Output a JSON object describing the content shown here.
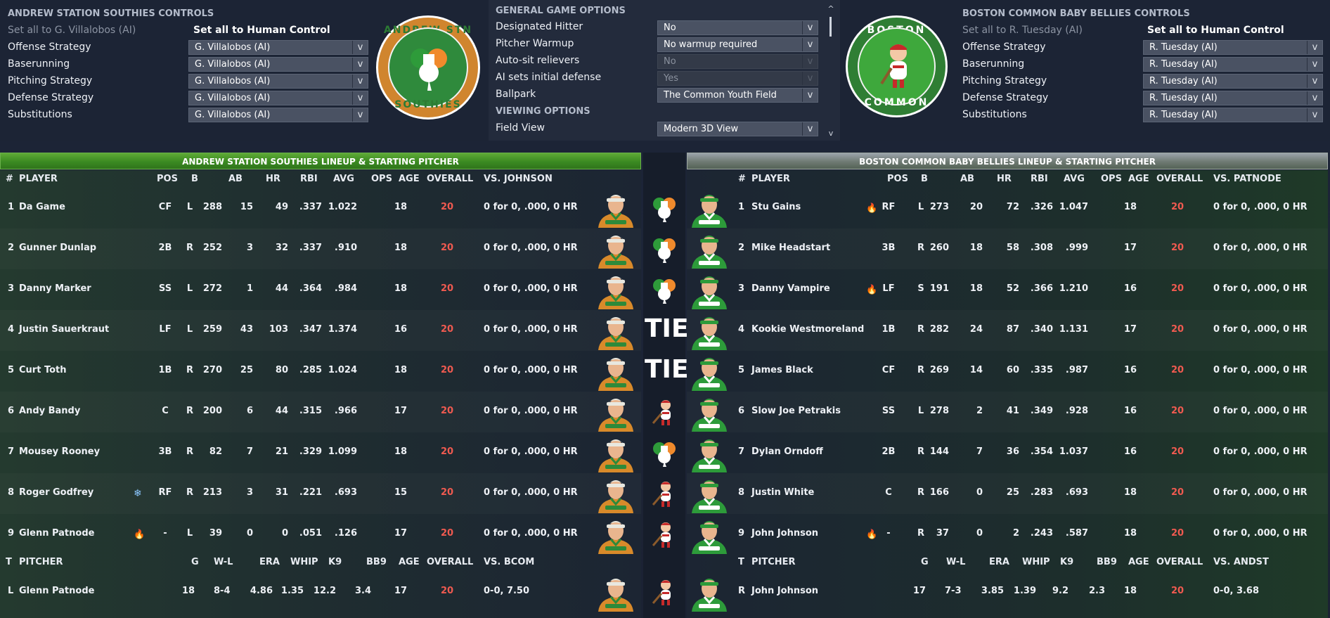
{
  "away_controls": {
    "title": "ANDREW STATION SOUTHIES CONTROLS",
    "set_all_label": "Set all to G. Villalobos (AI)",
    "set_all_human": "Set all to Human Control",
    "rows": [
      {
        "label": "Offense Strategy",
        "value": "G. Villalobos (AI)"
      },
      {
        "label": "Baserunning",
        "value": "G. Villalobos (AI)"
      },
      {
        "label": "Pitching Strategy",
        "value": "G. Villalobos (AI)"
      },
      {
        "label": "Defense Strategy",
        "value": "G. Villalobos (AI)"
      },
      {
        "label": "Substitutions",
        "value": "G. Villalobos (AI)"
      }
    ],
    "logo_text_top": "ANDREW STN",
    "logo_text_bottom": "SOUTHIES"
  },
  "home_controls": {
    "title": "BOSTON COMMON BABY BELLIES CONTROLS",
    "set_all_label": "Set all to R. Tuesday (AI)",
    "set_all_human": "Set all to Human Control",
    "rows": [
      {
        "label": "Offense Strategy",
        "value": "R. Tuesday (AI)"
      },
      {
        "label": "Baserunning",
        "value": "R. Tuesday (AI)"
      },
      {
        "label": "Pitching Strategy",
        "value": "R. Tuesday (AI)"
      },
      {
        "label": "Defense Strategy",
        "value": "R. Tuesday (AI)"
      },
      {
        "label": "Substitutions",
        "value": "R. Tuesday (AI)"
      }
    ],
    "logo_text_top": "BOSTON",
    "logo_text_bottom": "COMMON"
  },
  "general": {
    "title": "GENERAL GAME OPTIONS",
    "rows": [
      {
        "label": "Designated Hitter",
        "value": "No",
        "disabled": false
      },
      {
        "label": "Pitcher Warmup",
        "value": "No warmup required",
        "disabled": false
      },
      {
        "label": "Auto-sit relievers",
        "value": "No",
        "disabled": true
      },
      {
        "label": "AI sets initial defense",
        "value": "Yes",
        "disabled": true
      },
      {
        "label": "Ballpark",
        "value": "The Common Youth Field",
        "disabled": false
      }
    ],
    "viewing_title": "VIEWING OPTIONS",
    "view_label": "Field View",
    "view_value": "Modern 3D View",
    "scroll_up": "^",
    "scroll_down": "v"
  },
  "away_lineup": {
    "header": "ANDREW STATION SOUTHIES LINEUP & STARTING PITCHER",
    "cols": {
      "num": "#",
      "player": "PLAYER",
      "pos": "POS",
      "b": "B",
      "ab": "AB",
      "hr": "HR",
      "rbi": "RBI",
      "avg": "AVG",
      "ops": "OPS",
      "age": "AGE",
      "overall": "OVERALL",
      "vs": "VS. JOHNSON"
    },
    "rows": [
      {
        "num": "1",
        "name": "Da Game",
        "pos": "CF",
        "b": "L",
        "ab": "288",
        "hr": "15",
        "rbi": "49",
        "avg": ".337",
        "ops": "1.022",
        "age": "18",
        "overall": "20",
        "vs": "0 for 0, .000, 0 HR",
        "icon": ""
      },
      {
        "num": "2",
        "name": "Gunner Dunlap",
        "pos": "2B",
        "b": "R",
        "ab": "252",
        "hr": "3",
        "rbi": "32",
        "avg": ".337",
        "ops": ".910",
        "age": "18",
        "overall": "20",
        "vs": "0 for 0, .000, 0 HR",
        "icon": ""
      },
      {
        "num": "3",
        "name": "Danny Marker",
        "pos": "SS",
        "b": "L",
        "ab": "272",
        "hr": "1",
        "rbi": "44",
        "avg": ".364",
        "ops": ".984",
        "age": "18",
        "overall": "20",
        "vs": "0 for 0, .000, 0 HR",
        "icon": ""
      },
      {
        "num": "4",
        "name": "Justin Sauerkraut",
        "pos": "LF",
        "b": "L",
        "ab": "259",
        "hr": "43",
        "rbi": "103",
        "avg": ".347",
        "ops": "1.374",
        "age": "16",
        "overall": "20",
        "vs": "0 for 0, .000, 0 HR",
        "icon": ""
      },
      {
        "num": "5",
        "name": "Curt Toth",
        "pos": "1B",
        "b": "R",
        "ab": "270",
        "hr": "25",
        "rbi": "80",
        "avg": ".285",
        "ops": "1.024",
        "age": "18",
        "overall": "20",
        "vs": "0 for 0, .000, 0 HR",
        "icon": ""
      },
      {
        "num": "6",
        "name": "Andy Bandy",
        "pos": "C",
        "b": "R",
        "ab": "200",
        "hr": "6",
        "rbi": "44",
        "avg": ".315",
        "ops": ".966",
        "age": "17",
        "overall": "20",
        "vs": "0 for 0, .000, 0 HR",
        "icon": ""
      },
      {
        "num": "7",
        "name": "Mousey Rooney",
        "pos": "3B",
        "b": "R",
        "ab": "82",
        "hr": "7",
        "rbi": "21",
        "avg": ".329",
        "ops": "1.099",
        "age": "18",
        "overall": "20",
        "vs": "0 for 0, .000, 0 HR",
        "icon": ""
      },
      {
        "num": "8",
        "name": "Roger Godfrey",
        "pos": "RF",
        "b": "R",
        "ab": "213",
        "hr": "3",
        "rbi": "31",
        "avg": ".221",
        "ops": ".693",
        "age": "15",
        "overall": "20",
        "vs": "0 for 0, .000, 0 HR",
        "icon": "cold"
      },
      {
        "num": "9",
        "name": "Glenn Patnode",
        "pos": "-",
        "b": "L",
        "ab": "39",
        "hr": "0",
        "rbi": "0",
        "avg": ".051",
        "ops": ".126",
        "age": "17",
        "overall": "20",
        "vs": "0 for 0, .000, 0 HR",
        "icon": "hot"
      }
    ],
    "pcols": {
      "t": "T",
      "pitcher": "PITCHER",
      "g": "G",
      "wl": "W-L",
      "era": "ERA",
      "whip": "WHIP",
      "k9": "K9",
      "bb9": "BB9",
      "age": "AGE",
      "overall": "OVERALL",
      "vs": "VS. BCOM"
    },
    "pitcher": {
      "t": "L",
      "name": "Glenn Patnode",
      "g": "18",
      "wl": "8-4",
      "era": "4.86",
      "whip": "1.35",
      "k9": "12.2",
      "bb9": "3.4",
      "age": "17",
      "overall": "20",
      "vs": "0-0, 7.50"
    }
  },
  "home_lineup": {
    "header": "BOSTON COMMON BABY BELLIES LINEUP & STARTING PITCHER",
    "cols": {
      "num": "#",
      "player": "PLAYER",
      "pos": "POS",
      "b": "B",
      "ab": "AB",
      "hr": "HR",
      "rbi": "RBI",
      "avg": "AVG",
      "ops": "OPS",
      "age": "AGE",
      "overall": "OVERALL",
      "vs": "VS. PATNODE"
    },
    "rows": [
      {
        "num": "1",
        "name": "Stu Gains",
        "pos": "RF",
        "b": "L",
        "ab": "273",
        "hr": "20",
        "rbi": "72",
        "avg": ".326",
        "ops": "1.047",
        "age": "18",
        "overall": "20",
        "vs": "0 for 0, .000, 0 HR",
        "icon": "hot"
      },
      {
        "num": "2",
        "name": "Mike Headstart",
        "pos": "3B",
        "b": "R",
        "ab": "260",
        "hr": "18",
        "rbi": "58",
        "avg": ".308",
        "ops": ".999",
        "age": "17",
        "overall": "20",
        "vs": "0 for 0, .000, 0 HR",
        "icon": ""
      },
      {
        "num": "3",
        "name": "Danny Vampire",
        "pos": "LF",
        "b": "S",
        "ab": "191",
        "hr": "18",
        "rbi": "52",
        "avg": ".366",
        "ops": "1.210",
        "age": "16",
        "overall": "20",
        "vs": "0 for 0, .000, 0 HR",
        "icon": "hot"
      },
      {
        "num": "4",
        "name": "Kookie Westmoreland",
        "pos": "1B",
        "b": "R",
        "ab": "282",
        "hr": "24",
        "rbi": "87",
        "avg": ".340",
        "ops": "1.131",
        "age": "17",
        "overall": "20",
        "vs": "0 for 0, .000, 0 HR",
        "icon": ""
      },
      {
        "num": "5",
        "name": "James Black",
        "pos": "CF",
        "b": "R",
        "ab": "269",
        "hr": "14",
        "rbi": "60",
        "avg": ".335",
        "ops": ".987",
        "age": "16",
        "overall": "20",
        "vs": "0 for 0, .000, 0 HR",
        "icon": ""
      },
      {
        "num": "6",
        "name": "Slow Joe Petrakis",
        "pos": "SS",
        "b": "L",
        "ab": "278",
        "hr": "2",
        "rbi": "41",
        "avg": ".349",
        "ops": ".928",
        "age": "16",
        "overall": "20",
        "vs": "0 for 0, .000, 0 HR",
        "icon": ""
      },
      {
        "num": "7",
        "name": "Dylan Orndoff",
        "pos": "2B",
        "b": "R",
        "ab": "144",
        "hr": "7",
        "rbi": "36",
        "avg": ".354",
        "ops": "1.037",
        "age": "16",
        "overall": "20",
        "vs": "0 for 0, .000, 0 HR",
        "icon": ""
      },
      {
        "num": "8",
        "name": "Justin White",
        "pos": "C",
        "b": "R",
        "ab": "166",
        "hr": "0",
        "rbi": "25",
        "avg": ".283",
        "ops": ".693",
        "age": "18",
        "overall": "20",
        "vs": "0 for 0, .000, 0 HR",
        "icon": ""
      },
      {
        "num": "9",
        "name": "John Johnson",
        "pos": "-",
        "b": "R",
        "ab": "37",
        "hr": "0",
        "rbi": "2",
        "avg": ".243",
        "ops": ".587",
        "age": "18",
        "overall": "20",
        "vs": "0 for 0, .000, 0 HR",
        "icon": "hot"
      }
    ],
    "pcols": {
      "t": "T",
      "pitcher": "PITCHER",
      "g": "G",
      "wl": "W-L",
      "era": "ERA",
      "whip": "WHIP",
      "k9": "K9",
      "bb9": "BB9",
      "age": "AGE",
      "overall": "OVERALL",
      "vs": "VS. ANDST"
    },
    "pitcher": {
      "t": "R",
      "name": "John Johnson",
      "g": "17",
      "wl": "7-3",
      "era": "3.85",
      "whip": "1.39",
      "k9": "9.2",
      "bb9": "2.3",
      "age": "18",
      "overall": "20",
      "vs": "0-0, 3.68"
    }
  },
  "matchups": [
    "away",
    "away",
    "away",
    "tie",
    "tie",
    "home",
    "away",
    "home",
    "home"
  ],
  "tie_label": "TIE",
  "colors": {
    "overall": "#f05a50",
    "away_green": "#3b8a22",
    "hot": "#ff6a1a",
    "cold": "#8cc7ff"
  }
}
